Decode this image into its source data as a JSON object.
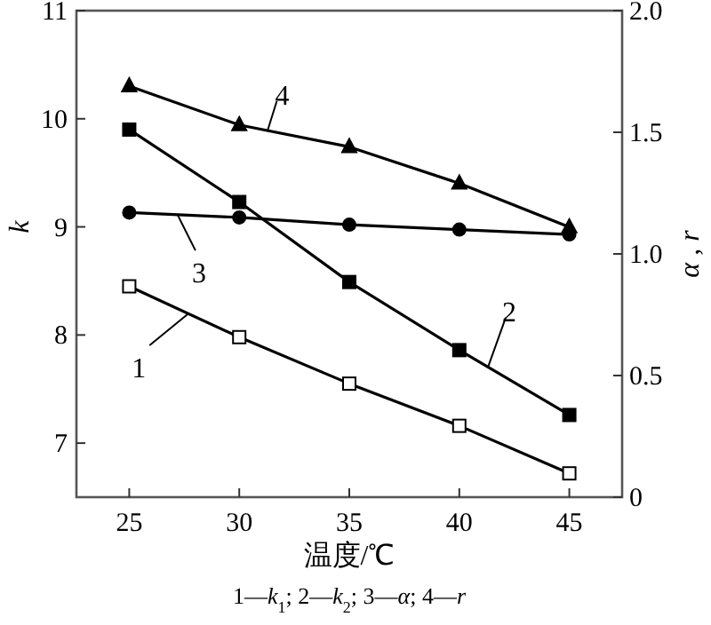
{
  "chart_data": {
    "type": "line",
    "xlabel": "温度/℃",
    "ylabel": "k",
    "y2label": "α , r",
    "grid": false,
    "x": [
      25,
      30,
      35,
      40,
      45
    ],
    "xlim": [
      22.6,
      47.4
    ],
    "xticks": [
      25,
      30,
      35,
      40,
      45
    ],
    "ylim": [
      6.5,
      11
    ],
    "yticks": [
      7,
      8,
      9,
      10,
      11
    ],
    "y2lim": [
      0,
      2
    ],
    "y2ticks": [
      0,
      {
        "value": 0.5,
        "label": "0.5"
      },
      {
        "value": 1,
        "label": "1.0"
      },
      1.5,
      {
        "value": 2,
        "label": "2.0"
      }
    ],
    "series": [
      {
        "color": "#000000",
        "marker": "square_open",
        "values": [
          8.45,
          7.98,
          7.55,
          7.16,
          6.72
        ]
      },
      {
        "color": "#000000",
        "marker": "square",
        "values": [
          9.9,
          9.23,
          8.49,
          7.86,
          7.26
        ]
      },
      {
        "color": "#000000",
        "marker": "circle",
        "axis": "y2",
        "values": [
          1.17,
          1.15,
          1.12,
          1.1,
          1.08
        ]
      },
      {
        "color": "#000000",
        "marker": "triangle",
        "axis": "y2",
        "values": [
          1.69,
          1.53,
          1.44,
          1.29,
          1.11
        ]
      }
    ],
    "annotations": [
      {
        "text": "1",
        "x": 27.7,
        "y": 8.2
      },
      {
        "text": "2",
        "x": 41.3,
        "y": 7.7
      },
      {
        "text": "3",
        "x": 27.2,
        "y": 9.11
      },
      {
        "text": "4",
        "x": 31.3,
        "y": 9.9
      },
      "1—k$_{1}$; 2—k$_{2}$; 3—α; 4—r"
    ]
  }
}
